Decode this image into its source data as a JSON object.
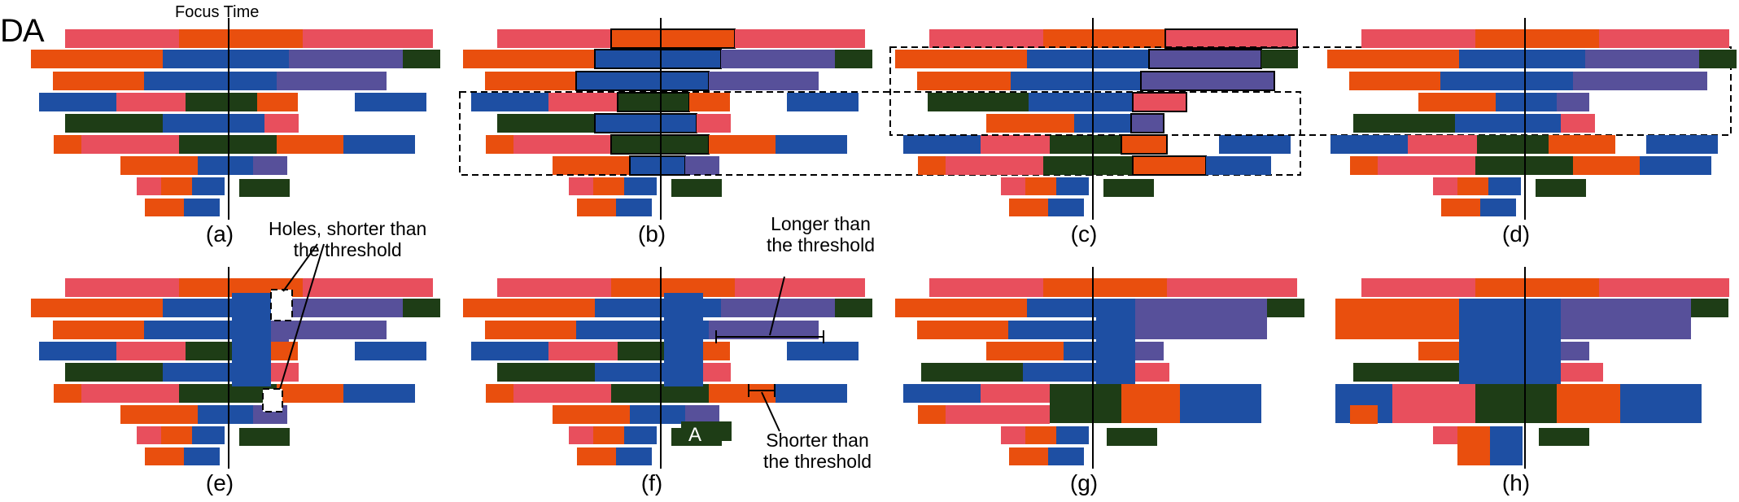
{
  "header": {
    "brand": "DA",
    "focus_time_label": "Focus Time"
  },
  "panels": [
    {
      "id": "a",
      "label": "(a)"
    },
    {
      "id": "b",
      "label": "(b)"
    },
    {
      "id": "c",
      "label": "(c)"
    },
    {
      "id": "d",
      "label": "(d)"
    },
    {
      "id": "e",
      "label": "(e)"
    },
    {
      "id": "f",
      "label": "(f)"
    },
    {
      "id": "g",
      "label": "(g)"
    },
    {
      "id": "h",
      "label": "(h)"
    }
  ],
  "annotations": {
    "holes": "Holes, shorter than\nthe threshold",
    "longer": "Longer than\nthe threshold",
    "shorter": "Shorter than\nthe threshold",
    "mark_a": "A"
  },
  "colors": {
    "pink": "#e84f5d",
    "orange": "#e94f0e",
    "blue": "#1e4fa3",
    "purple": "#57509a",
    "darkgreen": "#1e3d16"
  }
}
